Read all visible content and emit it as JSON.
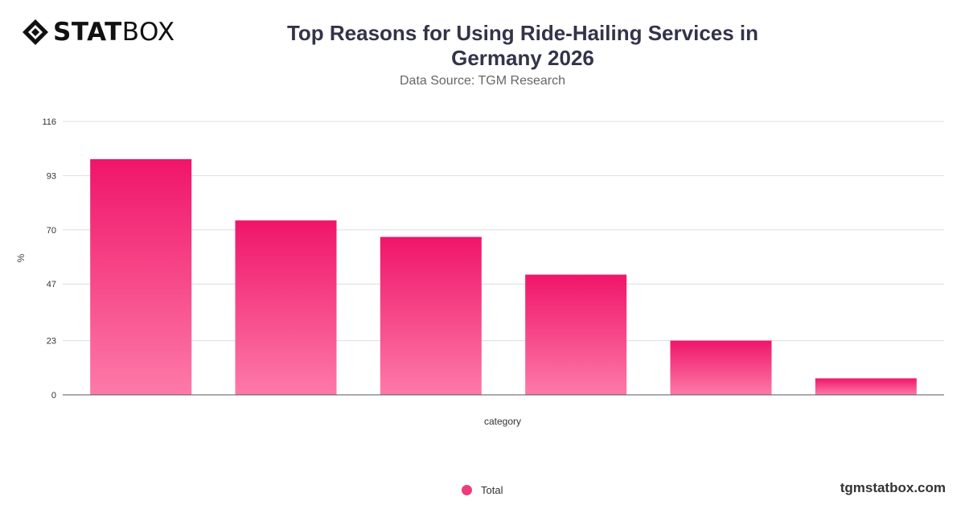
{
  "brand": {
    "logo_bold": "STAT",
    "logo_light": "BOX",
    "site": "tgmstatbox.com"
  },
  "header": {
    "title": "Top Reasons for Using Ride-Hailing Services in Germany 2026",
    "subtitle": "Data Source: TGM Research"
  },
  "legend": {
    "label": "Total"
  },
  "colors": {
    "bar_top": "#f0156a",
    "bar_bottom": "#fd7aa8",
    "grid": "#dddddd",
    "axis": "#555555"
  },
  "chart_data": {
    "type": "bar",
    "title": "Top Reasons for Using Ride-Hailing Services in Germany 2026",
    "subtitle": "Data Source: TGM Research",
    "xlabel": "category",
    "ylabel": "%",
    "ylim": [
      0,
      116
    ],
    "yticks": [
      0,
      23,
      47,
      70,
      93,
      116
    ],
    "categories": [
      "",
      "",
      "",
      "",
      "",
      ""
    ],
    "series": [
      {
        "name": "Total",
        "values": [
          100,
          74,
          67,
          51,
          23,
          7
        ]
      }
    ],
    "grid": true,
    "legend": "bottom-center"
  }
}
